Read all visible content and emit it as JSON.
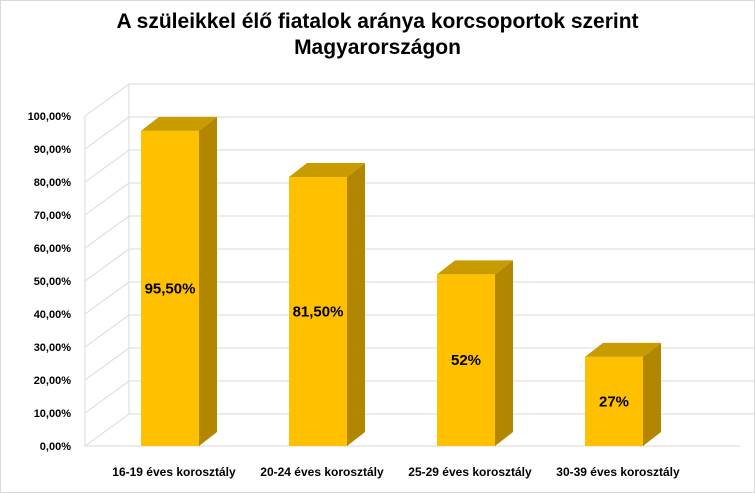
{
  "chart_data": {
    "type": "bar",
    "title_line1": "A szüleikkel élő fiatalok aránya korcsoportok szerint",
    "title_line2": "Magyarországon",
    "categories": [
      "16-19 éves korosztály",
      "20-24 éves korosztály",
      "25-29 éves korosztály",
      "30-39 éves korosztály"
    ],
    "values": [
      95.5,
      81.5,
      52,
      27
    ],
    "data_labels": [
      "95,50%",
      "81,50%",
      "52%",
      "27%"
    ],
    "ylim": [
      0,
      100
    ],
    "y_ticks": [
      "0,00%",
      "10,00%",
      "20,00%",
      "30,00%",
      "40,00%",
      "50,00%",
      "60,00%",
      "70,00%",
      "80,00%",
      "90,00%",
      "100,00%"
    ],
    "grid": true,
    "style": "3d-column",
    "colors": {
      "bar_front": "#ffc000",
      "bar_side": "#b38600",
      "bar_top": "#c89b00",
      "grid": "#d9d9d9"
    }
  }
}
